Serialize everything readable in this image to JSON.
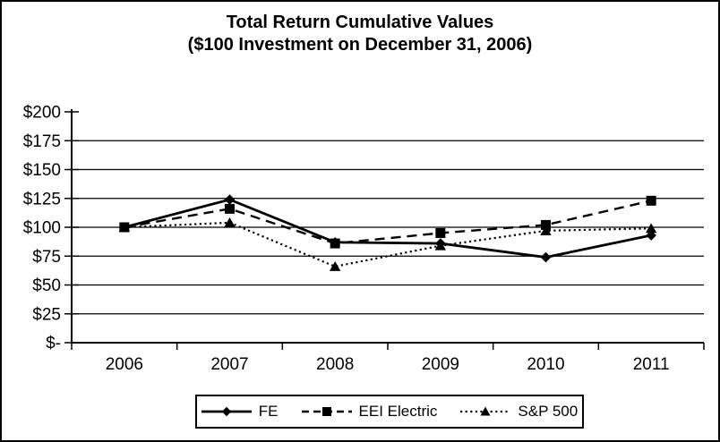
{
  "title": {
    "line1": "Total Return Cumulative Values",
    "line2": "($100 Investment on December 31, 2006)"
  },
  "chart_data": {
    "type": "line",
    "categories": [
      "2006",
      "2007",
      "2008",
      "2009",
      "2010",
      "2011"
    ],
    "series": [
      {
        "name": "FE",
        "line_style": "solid",
        "marker": "diamond",
        "values": [
          100,
          124,
          87,
          86,
          74,
          93
        ]
      },
      {
        "name": "EEI Electric",
        "line_style": "dashed",
        "marker": "square",
        "values": [
          100,
          116,
          86,
          95,
          102,
          123
        ]
      },
      {
        "name": "S&P 500",
        "line_style": "dotted",
        "marker": "triangle",
        "values": [
          100,
          104,
          66,
          84,
          97,
          99
        ]
      }
    ],
    "ylim": [
      0,
      200
    ],
    "ytick_step": 25,
    "ytick_labels": [
      "$-",
      "$25",
      "$50",
      "$75",
      "$100",
      "$125",
      "$150",
      "$175",
      "$200"
    ],
    "xlabel": "",
    "ylabel": "",
    "grid": true,
    "legend_position": "bottom",
    "colors": {
      "foreground": "#000000",
      "background": "#ffffff"
    }
  }
}
